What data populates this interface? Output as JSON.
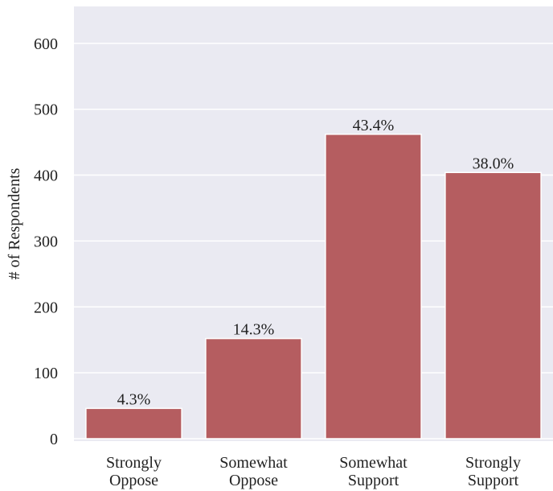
{
  "chart_data": {
    "type": "bar",
    "ylabel": "# of Respondents",
    "categories": [
      "Strongly\nOppose",
      "Somewhat\nOppose",
      "Somewhat\nSupport",
      "Strongly\nSupport"
    ],
    "values": [
      46,
      152,
      462,
      404
    ],
    "annotations": [
      "4.3%",
      "14.3%",
      "43.4%",
      "38.0%"
    ],
    "color": "#b55d60",
    "ylim": [
      0,
      656
    ],
    "yticks": [
      0,
      100,
      200,
      300,
      400,
      500,
      600
    ],
    "grid": true
  }
}
